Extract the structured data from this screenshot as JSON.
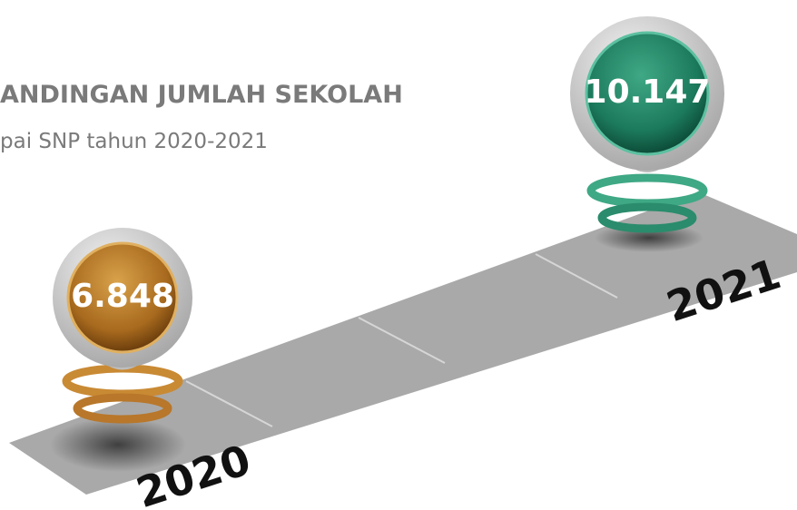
{
  "header": {
    "title": "ANDINGAN JUMLAH SEKOLAH",
    "subtitle": "pai SNP tahun 2020-2021"
  },
  "markers": [
    {
      "year": "2020",
      "value": "6.848"
    },
    {
      "year": "2021",
      "value": "10.147"
    }
  ]
}
